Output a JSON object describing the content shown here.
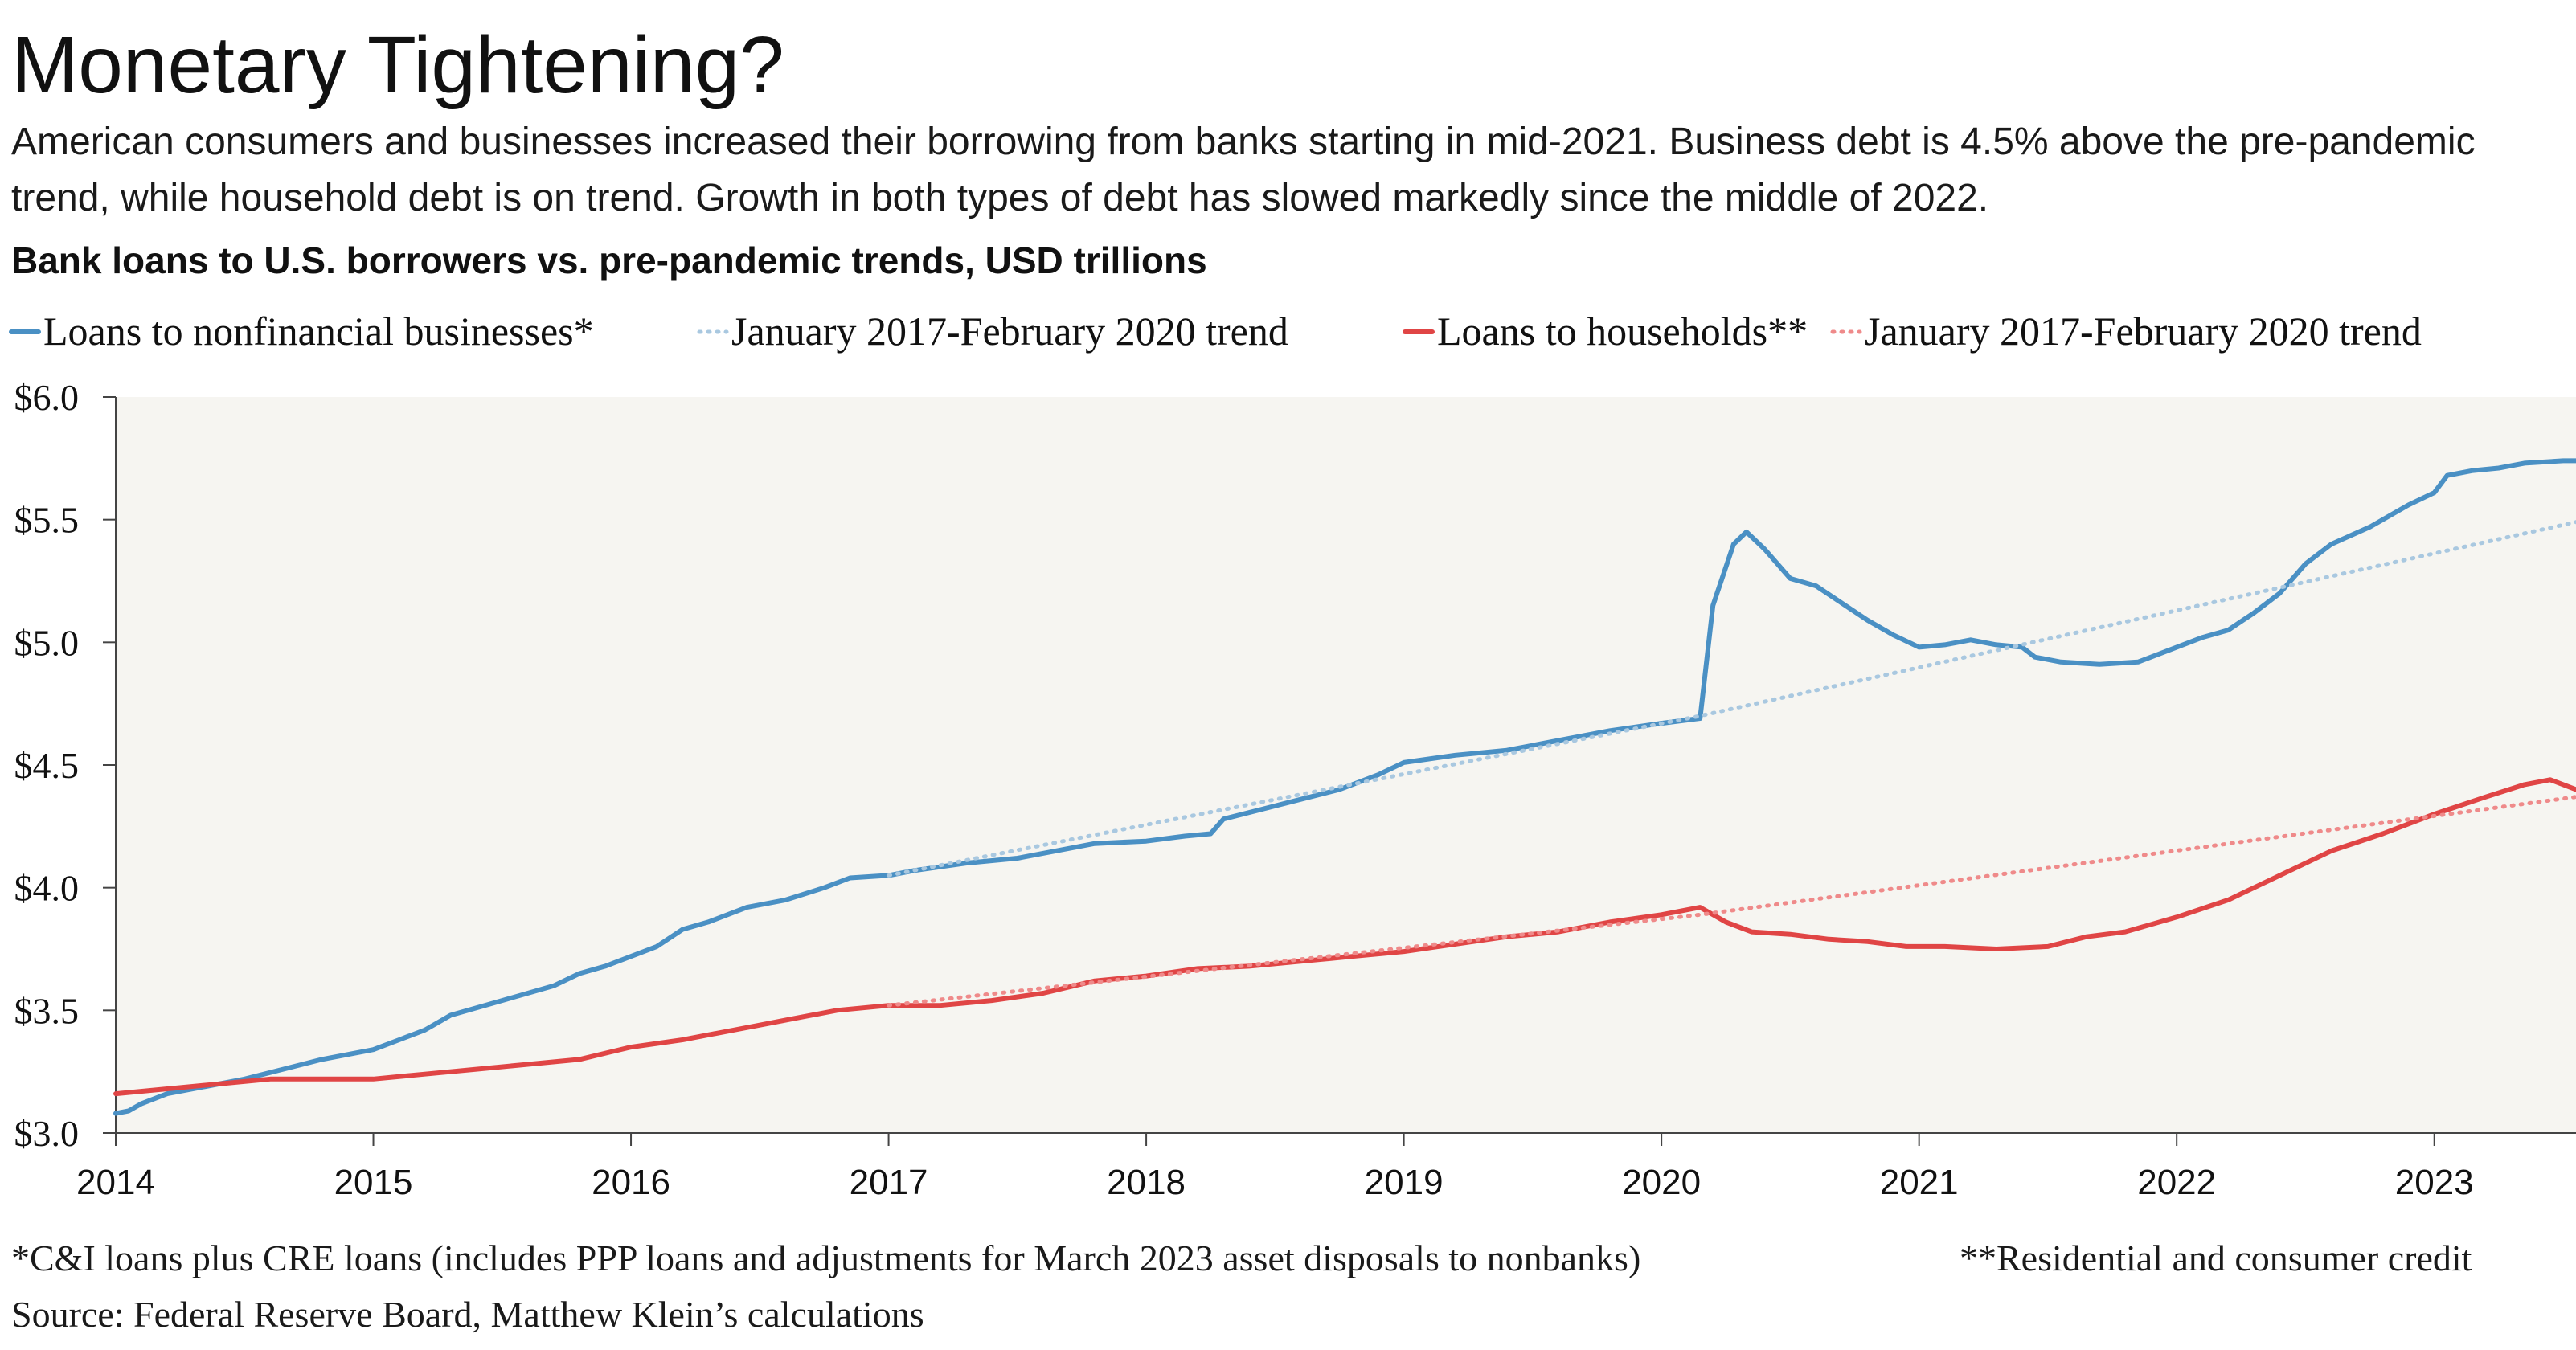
{
  "title": "Monetary Tightening?",
  "subtitle": "American consumers and businesses increased their borrowing from banks starting in mid-2021. Business debt is 4.5% above the pre-pandemic trend, while household debt is on trend. Growth in both types of debt has slowed markedly since the middle of 2022.",
  "footnotes": {
    "note1": "*C&I loans plus CRE loans (includes PPP loans and adjustments for March 2023 asset disposals to nonbanks)",
    "note2": "**Residential and consumer credit",
    "source": "Source: Federal Reserve Board, Matthew Klein’s calculations"
  },
  "colors": {
    "business": "#4a90c4",
    "business_trend": "#a9c8e0",
    "household": "#e04545",
    "household_trend": "#ef8a8a",
    "plot_background": "#f6f5f1"
  },
  "chart_data": {
    "type": "line",
    "title": "Bank loans to U.S. borrowers vs. pre-pandemic trends, USD trillions",
    "xlabel": "",
    "ylabel": "",
    "xlim": [
      2014.0,
      2023.55
    ],
    "ylim": [
      3.0,
      6.0
    ],
    "x_ticks": [
      2014,
      2015,
      2016,
      2017,
      2018,
      2019,
      2020,
      2021,
      2022,
      2023
    ],
    "x_tick_labels": [
      "2014",
      "2015",
      "2016",
      "2017",
      "2018",
      "2019",
      "2020",
      "2021",
      "2022",
      "2023"
    ],
    "y_ticks": [
      3.0,
      3.5,
      4.0,
      4.5,
      5.0,
      5.5,
      6.0
    ],
    "y_tick_labels": [
      "$3.0",
      "$3.5",
      "$4.0",
      "$4.5",
      "$5.0",
      "$5.5",
      "$6.0"
    ],
    "grid": false,
    "legend_position": "top",
    "series": [
      {
        "name": "Loans to nonfinancial businesses*",
        "style": "solid",
        "color_key": "business",
        "points": [
          [
            2014.0,
            3.08
          ],
          [
            2014.05,
            3.09
          ],
          [
            2014.1,
            3.12
          ],
          [
            2014.2,
            3.16
          ],
          [
            2014.35,
            3.19
          ],
          [
            2014.5,
            3.22
          ],
          [
            2014.65,
            3.26
          ],
          [
            2014.8,
            3.3
          ],
          [
            2015.0,
            3.34
          ],
          [
            2015.1,
            3.38
          ],
          [
            2015.2,
            3.42
          ],
          [
            2015.3,
            3.48
          ],
          [
            2015.5,
            3.54
          ],
          [
            2015.7,
            3.6
          ],
          [
            2015.8,
            3.65
          ],
          [
            2015.9,
            3.68
          ],
          [
            2016.0,
            3.72
          ],
          [
            2016.1,
            3.76
          ],
          [
            2016.2,
            3.83
          ],
          [
            2016.3,
            3.86
          ],
          [
            2016.45,
            3.92
          ],
          [
            2016.6,
            3.95
          ],
          [
            2016.75,
            4.0
          ],
          [
            2016.85,
            4.04
          ],
          [
            2017.0,
            4.05
          ],
          [
            2017.1,
            4.07
          ],
          [
            2017.3,
            4.1
          ],
          [
            2017.5,
            4.12
          ],
          [
            2017.7,
            4.16
          ],
          [
            2017.8,
            4.18
          ],
          [
            2018.0,
            4.19
          ],
          [
            2018.15,
            4.21
          ],
          [
            2018.25,
            4.22
          ],
          [
            2018.3,
            4.28
          ],
          [
            2018.45,
            4.32
          ],
          [
            2018.6,
            4.36
          ],
          [
            2018.75,
            4.4
          ],
          [
            2018.9,
            4.46
          ],
          [
            2019.0,
            4.51
          ],
          [
            2019.2,
            4.54
          ],
          [
            2019.4,
            4.56
          ],
          [
            2019.6,
            4.6
          ],
          [
            2019.8,
            4.64
          ],
          [
            2020.0,
            4.67
          ],
          [
            2020.15,
            4.69
          ],
          [
            2020.2,
            5.15
          ],
          [
            2020.28,
            5.4
          ],
          [
            2020.33,
            5.45
          ],
          [
            2020.4,
            5.38
          ],
          [
            2020.5,
            5.26
          ],
          [
            2020.6,
            5.23
          ],
          [
            2020.7,
            5.16
          ],
          [
            2020.8,
            5.09
          ],
          [
            2020.9,
            5.03
          ],
          [
            2021.0,
            4.98
          ],
          [
            2021.1,
            4.99
          ],
          [
            2021.2,
            5.01
          ],
          [
            2021.3,
            4.99
          ],
          [
            2021.4,
            4.98
          ],
          [
            2021.45,
            4.94
          ],
          [
            2021.55,
            4.92
          ],
          [
            2021.7,
            4.91
          ],
          [
            2021.85,
            4.92
          ],
          [
            2022.0,
            4.98
          ],
          [
            2022.1,
            5.02
          ],
          [
            2022.2,
            5.05
          ],
          [
            2022.3,
            5.12
          ],
          [
            2022.4,
            5.2
          ],
          [
            2022.5,
            5.32
          ],
          [
            2022.6,
            5.4
          ],
          [
            2022.75,
            5.47
          ],
          [
            2022.9,
            5.56
          ],
          [
            2023.0,
            5.61
          ],
          [
            2023.05,
            5.68
          ],
          [
            2023.15,
            5.7
          ],
          [
            2023.25,
            5.71
          ],
          [
            2023.35,
            5.73
          ],
          [
            2023.5,
            5.74
          ],
          [
            2023.55,
            5.74
          ]
        ]
      },
      {
        "name": "January 2017-February 2020 trend",
        "style": "dotted",
        "color_key": "business_trend",
        "points": [
          [
            2017.0,
            4.05
          ],
          [
            2020.15,
            4.7
          ],
          [
            2023.55,
            5.49
          ]
        ]
      },
      {
        "name": "Loans to households**",
        "style": "solid",
        "color_key": "household",
        "points": [
          [
            2014.0,
            3.16
          ],
          [
            2014.2,
            3.18
          ],
          [
            2014.4,
            3.2
          ],
          [
            2014.6,
            3.22
          ],
          [
            2014.8,
            3.22
          ],
          [
            2015.0,
            3.22
          ],
          [
            2015.2,
            3.24
          ],
          [
            2015.4,
            3.26
          ],
          [
            2015.6,
            3.28
          ],
          [
            2015.8,
            3.3
          ],
          [
            2016.0,
            3.35
          ],
          [
            2016.2,
            3.38
          ],
          [
            2016.4,
            3.42
          ],
          [
            2016.6,
            3.46
          ],
          [
            2016.8,
            3.5
          ],
          [
            2017.0,
            3.52
          ],
          [
            2017.2,
            3.52
          ],
          [
            2017.4,
            3.54
          ],
          [
            2017.6,
            3.57
          ],
          [
            2017.8,
            3.62
          ],
          [
            2018.0,
            3.64
          ],
          [
            2018.2,
            3.67
          ],
          [
            2018.4,
            3.68
          ],
          [
            2018.6,
            3.7
          ],
          [
            2018.8,
            3.72
          ],
          [
            2019.0,
            3.74
          ],
          [
            2019.2,
            3.77
          ],
          [
            2019.4,
            3.8
          ],
          [
            2019.6,
            3.82
          ],
          [
            2019.8,
            3.86
          ],
          [
            2020.0,
            3.89
          ],
          [
            2020.15,
            3.92
          ],
          [
            2020.25,
            3.86
          ],
          [
            2020.35,
            3.82
          ],
          [
            2020.5,
            3.81
          ],
          [
            2020.65,
            3.79
          ],
          [
            2020.8,
            3.78
          ],
          [
            2020.95,
            3.76
          ],
          [
            2021.1,
            3.76
          ],
          [
            2021.3,
            3.75
          ],
          [
            2021.5,
            3.76
          ],
          [
            2021.65,
            3.8
          ],
          [
            2021.8,
            3.82
          ],
          [
            2022.0,
            3.88
          ],
          [
            2022.2,
            3.95
          ],
          [
            2022.4,
            4.05
          ],
          [
            2022.6,
            4.15
          ],
          [
            2022.8,
            4.22
          ],
          [
            2023.0,
            4.3
          ],
          [
            2023.2,
            4.37
          ],
          [
            2023.35,
            4.42
          ],
          [
            2023.45,
            4.44
          ],
          [
            2023.55,
            4.4
          ]
        ]
      },
      {
        "name": "January 2017-February 2020 trend",
        "style": "dotted",
        "color_key": "household_trend",
        "points": [
          [
            2017.0,
            3.52
          ],
          [
            2020.15,
            3.89
          ],
          [
            2023.55,
            4.37
          ]
        ]
      }
    ]
  }
}
